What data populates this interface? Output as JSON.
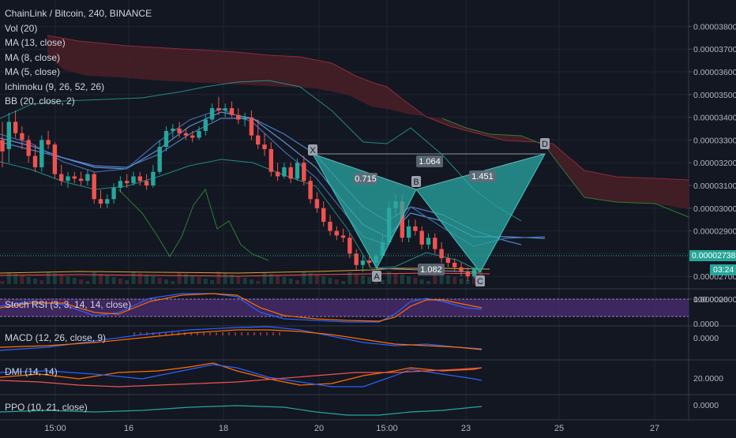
{
  "header": {
    "title": "ChainLink / Bitcoin, 240, BINANCE",
    "indicators": [
      "Vol (20)",
      "MA (13, close)",
      "MA (8, close)",
      "MA (5, close)",
      "Ichimoku (9, 26, 52, 26)",
      "BB (20, close, 2)"
    ]
  },
  "panes": {
    "stoch_label": "Stoch RSI (3, 3, 14, 14, close)",
    "macd_label": "MACD (12, 26, close, 9)",
    "dmi_label": "DMI (14, 14)",
    "ppo_label": "PPO (10, 21, close)"
  },
  "price_axis": {
    "ticks": [
      "0.00003800",
      "0.00003700",
      "0.00003600",
      "0.00003500",
      "0.00003400",
      "0.00003300",
      "0.00003200",
      "0.00003100",
      "0.00003000",
      "0.00002900",
      "0.00002800",
      "0.00002700",
      "0.00002600"
    ],
    "last_price": "0.00002738",
    "countdown": "03:24"
  },
  "pane_axes": {
    "stoch": [
      "100.0000",
      "0.0000"
    ],
    "macd": [
      "0.0000"
    ],
    "dmi": [
      "20.0000"
    ],
    "ppo": [
      "0.0000"
    ]
  },
  "time_axis": [
    "15:00",
    "16",
    "18",
    "20",
    "15:00",
    "23",
    "25",
    "27"
  ],
  "pattern": {
    "points": [
      "X",
      "A",
      "B",
      "C",
      "D"
    ],
    "ratios": [
      "0.715",
      "1.064",
      "1.451",
      "1.082"
    ]
  },
  "colors": {
    "background": "#131722",
    "up": "#26a69a",
    "down": "#ef5350",
    "pattern_fill": "#2aa7a3",
    "stoch_band": "#4a2a6e"
  },
  "chart_data": {
    "type": "candlestick",
    "symbol": "ChainLink / Bitcoin",
    "interval": "240",
    "exchange": "BINANCE",
    "price_range": [
      2.59e-05,
      3.88e-05
    ],
    "candles": [
      {
        "o": 33.0,
        "h": 33.8,
        "l": 31.8,
        "c": 32.5
      },
      {
        "o": 32.6,
        "h": 34.2,
        "l": 32.0,
        "c": 33.8
      },
      {
        "o": 33.8,
        "h": 34.3,
        "l": 33.1,
        "c": 33.3
      },
      {
        "o": 33.3,
        "h": 33.6,
        "l": 32.6,
        "c": 33.0
      },
      {
        "o": 33.0,
        "h": 33.2,
        "l": 32.0,
        "c": 32.3
      },
      {
        "o": 32.3,
        "h": 32.8,
        "l": 31.6,
        "c": 31.8
      },
      {
        "o": 31.8,
        "h": 33.2,
        "l": 31.6,
        "c": 33.0
      },
      {
        "o": 33.0,
        "h": 33.4,
        "l": 32.6,
        "c": 32.8
      },
      {
        "o": 32.8,
        "h": 32.9,
        "l": 31.3,
        "c": 31.5
      },
      {
        "o": 31.5,
        "h": 31.9,
        "l": 31.0,
        "c": 31.2
      },
      {
        "o": 31.2,
        "h": 31.6,
        "l": 30.9,
        "c": 31.4
      },
      {
        "o": 31.4,
        "h": 31.6,
        "l": 31.1,
        "c": 31.3
      },
      {
        "o": 31.3,
        "h": 31.6,
        "l": 31.0,
        "c": 31.2
      },
      {
        "o": 31.2,
        "h": 31.7,
        "l": 31.0,
        "c": 31.5
      },
      {
        "o": 31.5,
        "h": 31.6,
        "l": 30.2,
        "c": 30.4
      },
      {
        "o": 30.4,
        "h": 30.8,
        "l": 30.0,
        "c": 30.2
      },
      {
        "o": 30.2,
        "h": 30.6,
        "l": 30.0,
        "c": 30.4
      },
      {
        "o": 30.4,
        "h": 31.1,
        "l": 30.2,
        "c": 30.9
      },
      {
        "o": 30.9,
        "h": 31.4,
        "l": 30.7,
        "c": 31.2
      },
      {
        "o": 31.2,
        "h": 31.5,
        "l": 30.9,
        "c": 31.1
      },
      {
        "o": 31.1,
        "h": 31.6,
        "l": 31.0,
        "c": 31.4
      },
      {
        "o": 31.4,
        "h": 31.6,
        "l": 31.0,
        "c": 31.2
      },
      {
        "o": 31.2,
        "h": 31.5,
        "l": 30.8,
        "c": 31.0
      },
      {
        "o": 31.0,
        "h": 31.9,
        "l": 30.9,
        "c": 31.6
      },
      {
        "o": 31.6,
        "h": 33.0,
        "l": 31.5,
        "c": 32.7
      },
      {
        "o": 32.7,
        "h": 33.6,
        "l": 32.5,
        "c": 33.4
      },
      {
        "o": 33.4,
        "h": 33.7,
        "l": 33.1,
        "c": 33.5
      },
      {
        "o": 33.5,
        "h": 33.8,
        "l": 33.1,
        "c": 33.3
      },
      {
        "o": 33.3,
        "h": 33.5,
        "l": 33.0,
        "c": 33.2
      },
      {
        "o": 33.2,
        "h": 33.4,
        "l": 32.9,
        "c": 33.1
      },
      {
        "o": 33.1,
        "h": 33.6,
        "l": 33.0,
        "c": 33.4
      },
      {
        "o": 33.4,
        "h": 34.1,
        "l": 33.2,
        "c": 33.9
      },
      {
        "o": 33.9,
        "h": 34.6,
        "l": 33.8,
        "c": 34.4
      },
      {
        "o": 34.4,
        "h": 34.9,
        "l": 34.1,
        "c": 34.3
      },
      {
        "o": 34.3,
        "h": 34.6,
        "l": 34.0,
        "c": 34.4
      },
      {
        "o": 34.4,
        "h": 34.7,
        "l": 34.0,
        "c": 34.1
      },
      {
        "o": 34.1,
        "h": 34.4,
        "l": 33.7,
        "c": 33.9
      },
      {
        "o": 33.9,
        "h": 34.2,
        "l": 33.6,
        "c": 34.0
      },
      {
        "o": 34.0,
        "h": 34.3,
        "l": 33.0,
        "c": 33.2
      },
      {
        "o": 33.2,
        "h": 33.9,
        "l": 32.6,
        "c": 32.8
      },
      {
        "o": 32.8,
        "h": 33.3,
        "l": 32.3,
        "c": 32.6
      },
      {
        "o": 32.6,
        "h": 32.9,
        "l": 31.4,
        "c": 31.6
      },
      {
        "o": 31.6,
        "h": 32.0,
        "l": 31.2,
        "c": 31.4
      },
      {
        "o": 31.4,
        "h": 32.0,
        "l": 31.3,
        "c": 31.8
      },
      {
        "o": 31.8,
        "h": 32.0,
        "l": 31.1,
        "c": 31.3
      },
      {
        "o": 31.3,
        "h": 32.2,
        "l": 31.2,
        "c": 32.0
      },
      {
        "o": 32.0,
        "h": 32.3,
        "l": 31.0,
        "c": 31.2
      },
      {
        "o": 31.2,
        "h": 31.4,
        "l": 30.2,
        "c": 30.4
      },
      {
        "o": 30.4,
        "h": 30.7,
        "l": 29.8,
        "c": 30.0
      },
      {
        "o": 30.0,
        "h": 30.3,
        "l": 29.2,
        "c": 29.4
      },
      {
        "o": 29.4,
        "h": 29.7,
        "l": 28.8,
        "c": 29.0
      },
      {
        "o": 29.0,
        "h": 29.2,
        "l": 28.6,
        "c": 28.8
      },
      {
        "o": 28.8,
        "h": 29.1,
        "l": 28.5,
        "c": 28.7
      },
      {
        "o": 28.7,
        "h": 28.9,
        "l": 27.8,
        "c": 28.0
      },
      {
        "o": 28.0,
        "h": 28.2,
        "l": 27.3,
        "c": 27.5
      },
      {
        "o": 27.5,
        "h": 27.9,
        "l": 27.2,
        "c": 27.7
      },
      {
        "o": 27.7,
        "h": 27.9,
        "l": 27.4,
        "c": 27.6
      },
      {
        "o": 27.6,
        "h": 28.0,
        "l": 27.4,
        "c": 27.9
      },
      {
        "o": 27.9,
        "h": 28.8,
        "l": 27.8,
        "c": 28.5
      },
      {
        "o": 28.5,
        "h": 30.3,
        "l": 28.4,
        "c": 30.0
      },
      {
        "o": 30.0,
        "h": 30.6,
        "l": 29.6,
        "c": 30.3
      },
      {
        "o": 30.3,
        "h": 30.6,
        "l": 28.5,
        "c": 28.7
      },
      {
        "o": 28.7,
        "h": 29.5,
        "l": 28.5,
        "c": 29.2
      },
      {
        "o": 29.2,
        "h": 29.5,
        "l": 28.8,
        "c": 29.0
      },
      {
        "o": 29.0,
        "h": 29.2,
        "l": 28.2,
        "c": 28.4
      },
      {
        "o": 28.4,
        "h": 28.9,
        "l": 28.2,
        "c": 28.7
      },
      {
        "o": 28.7,
        "h": 28.9,
        "l": 28.0,
        "c": 28.2
      },
      {
        "o": 28.2,
        "h": 28.5,
        "l": 27.6,
        "c": 27.8
      },
      {
        "o": 27.8,
        "h": 28.0,
        "l": 27.4,
        "c": 27.6
      },
      {
        "o": 27.6,
        "h": 27.8,
        "l": 27.2,
        "c": 27.4
      },
      {
        "o": 27.4,
        "h": 27.6,
        "l": 27.0,
        "c": 27.2
      },
      {
        "o": 27.2,
        "h": 27.4,
        "l": 26.8,
        "c": 27.0
      },
      {
        "o": 27.0,
        "h": 27.4,
        "l": 26.9,
        "c": 27.38
      }
    ]
  }
}
